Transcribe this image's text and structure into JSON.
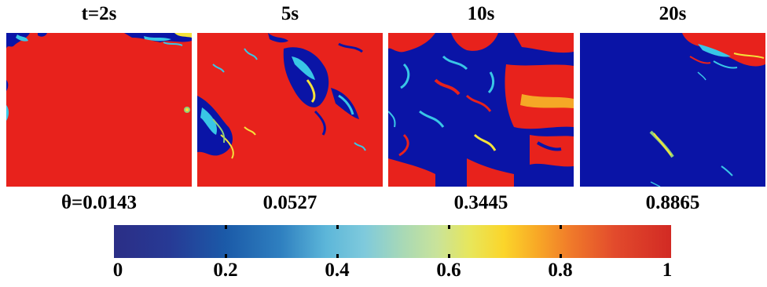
{
  "panels": [
    {
      "time": "t=2s",
      "theta": "θ=0.0143"
    },
    {
      "time": "5s",
      "theta": "0.0527"
    },
    {
      "time": "10s",
      "theta": "0.3445"
    },
    {
      "time": "20s",
      "theta": "0.8865"
    }
  ],
  "colorbar": {
    "ticks": [
      "0",
      "0.2",
      "0.4",
      "0.6",
      "0.8",
      "1"
    ],
    "colors": {
      "low": "#2b2e86",
      "mid_blue": "#2f80c0",
      "cyan": "#7fcadc",
      "yellow": "#fbd52a",
      "orange": "#f07a2a",
      "high": "#d22a24"
    }
  },
  "field_colors": {
    "red": "#e8221c",
    "blue": "#0a14a6",
    "cyan": "#39c6e6",
    "yellow": "#f5e23a",
    "green": "#8fd07a"
  }
}
